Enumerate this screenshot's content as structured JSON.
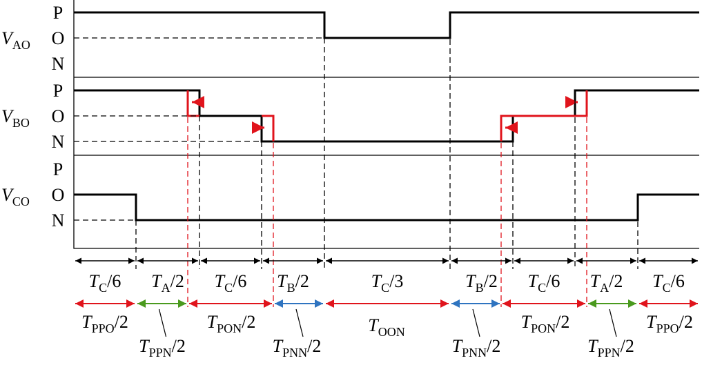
{
  "rows": [
    {
      "label": {
        "base": "V",
        "sub": "AO"
      },
      "levels": [
        "P",
        "O",
        "N"
      ]
    },
    {
      "label": {
        "base": "V",
        "sub": "BO"
      },
      "levels": [
        "P",
        "O",
        "N"
      ]
    },
    {
      "label": {
        "base": "V",
        "sub": "CO"
      },
      "levels": [
        "P",
        "O",
        "N"
      ]
    }
  ],
  "intervals": [
    {
      "base": "T",
      "sub": "C",
      "tail": "/6"
    },
    {
      "base": "T",
      "sub": "A",
      "tail": "/2"
    },
    {
      "base": "T",
      "sub": "C",
      "tail": "/6"
    },
    {
      "base": "T",
      "sub": "B",
      "tail": "/2"
    },
    {
      "base": "T",
      "sub": "C",
      "tail": "/3"
    },
    {
      "base": "T",
      "sub": "B",
      "tail": "/2"
    },
    {
      "base": "T",
      "sub": "C",
      "tail": "/6"
    },
    {
      "base": "T",
      "sub": "A",
      "tail": "/2"
    },
    {
      "base": "T",
      "sub": "C",
      "tail": "/6"
    }
  ],
  "durations": [
    {
      "base": "T",
      "sub": "PPO",
      "tail": "/2"
    },
    {
      "base": "T",
      "sub": "PPN",
      "tail": "/2"
    },
    {
      "base": "T",
      "sub": "PON",
      "tail": "/2"
    },
    {
      "base": "T",
      "sub": "PNN",
      "tail": "/2"
    },
    {
      "base": "T",
      "sub": "OON"
    },
    {
      "base": "T",
      "sub": "PNN",
      "tail": "/2"
    },
    {
      "base": "T",
      "sub": "PON",
      "tail": "/2"
    },
    {
      "base": "T",
      "sub": "PPN",
      "tail": "/2"
    },
    {
      "base": "T",
      "sub": "PPO",
      "tail": "/2"
    }
  ]
}
